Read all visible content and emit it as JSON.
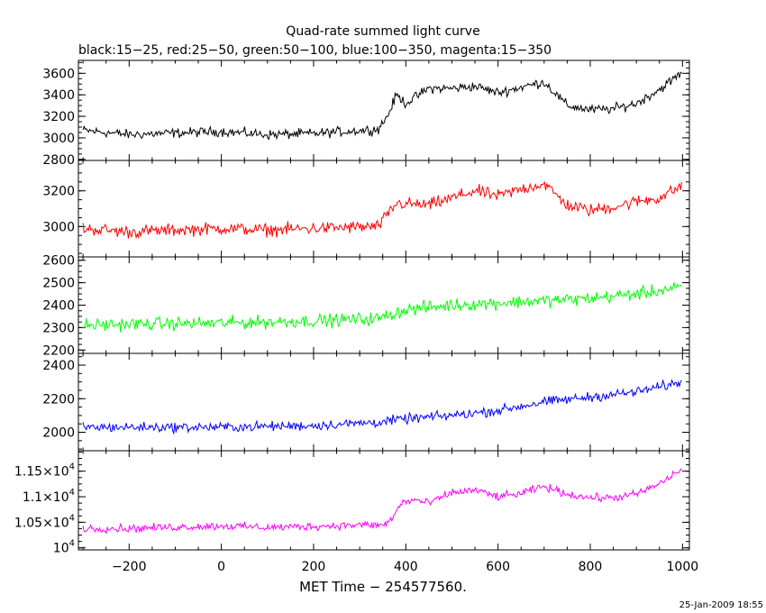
{
  "title": "Quad-rate summed light curve",
  "subtitle": "black:15−25, red:25−50, green:50−100, blue:100−350, magenta:15−350",
  "xlabel": "MET Time − 254577560.",
  "timestamp": "25-Jan-2009 18:55",
  "chart_data": [
    {
      "type": "line",
      "color": "#000000",
      "xlim": [
        -310,
        1015
      ],
      "ylim": [
        2790,
        3720
      ],
      "yticks": [
        2800,
        3000,
        3200,
        3400,
        3600
      ],
      "ytick_labels": [
        "2800",
        "3000",
        "3200",
        "3400",
        "3600"
      ],
      "series": [
        {
          "knots": [
            [
              -300,
              3070
            ],
            [
              -200,
              3030
            ],
            [
              0,
              3060
            ],
            [
              100,
              3030
            ],
            [
              200,
              3040
            ],
            [
              340,
              3080
            ],
            [
              360,
              3200
            ],
            [
              380,
              3400
            ],
            [
              400,
              3320
            ],
            [
              450,
              3460
            ],
            [
              500,
              3460
            ],
            [
              550,
              3480
            ],
            [
              600,
              3420
            ],
            [
              650,
              3470
            ],
            [
              700,
              3520
            ],
            [
              750,
              3300
            ],
            [
              800,
              3260
            ],
            [
              850,
              3270
            ],
            [
              900,
              3320
            ],
            [
              950,
              3450
            ],
            [
              1000,
              3610
            ]
          ],
          "noise": 70
        }
      ]
    },
    {
      "type": "line",
      "color": "#ff0000",
      "xlim": [
        -310,
        1015
      ],
      "ylim": [
        2830,
        3370
      ],
      "yticks": [
        3000,
        3200
      ],
      "ytick_labels": [
        "3000",
        "3200"
      ],
      "series": [
        {
          "knots": [
            [
              -300,
              2990
            ],
            [
              -200,
              2970
            ],
            [
              0,
              2990
            ],
            [
              100,
              2980
            ],
            [
              200,
              2990
            ],
            [
              340,
              3000
            ],
            [
              380,
              3130
            ],
            [
              450,
              3120
            ],
            [
              500,
              3160
            ],
            [
              550,
              3200
            ],
            [
              600,
              3170
            ],
            [
              650,
              3210
            ],
            [
              700,
              3240
            ],
            [
              750,
              3120
            ],
            [
              800,
              3090
            ],
            [
              850,
              3110
            ],
            [
              900,
              3140
            ],
            [
              950,
              3160
            ],
            [
              1000,
              3230
            ]
          ],
          "noise": 55
        }
      ]
    },
    {
      "type": "line",
      "color": "#00ff00",
      "xlim": [
        -310,
        1015
      ],
      "ylim": [
        2185,
        2615
      ],
      "yticks": [
        2200,
        2300,
        2400,
        2500,
        2600
      ],
      "ytick_labels": [
        "2200",
        "2300",
        "2400",
        "2500",
        "2600"
      ],
      "series": [
        {
          "knots": [
            [
              -300,
              2310
            ],
            [
              -200,
              2315
            ],
            [
              0,
              2320
            ],
            [
              200,
              2330
            ],
            [
              340,
              2340
            ],
            [
              400,
              2380
            ],
            [
              500,
              2400
            ],
            [
              600,
              2410
            ],
            [
              700,
              2420
            ],
            [
              800,
              2430
            ],
            [
              900,
              2450
            ],
            [
              1000,
              2480
            ]
          ],
          "noise": 45
        }
      ]
    },
    {
      "type": "line",
      "color": "#0000ff",
      "xlim": [
        -310,
        1015
      ],
      "ylim": [
        1890,
        2470
      ],
      "yticks": [
        2000,
        2200,
        2400
      ],
      "ytick_labels": [
        "2000",
        "2200",
        "2400"
      ],
      "series": [
        {
          "knots": [
            [
              -300,
              2030
            ],
            [
              -200,
              2030
            ],
            [
              0,
              2030
            ],
            [
              200,
              2040
            ],
            [
              340,
              2060
            ],
            [
              400,
              2080
            ],
            [
              500,
              2100
            ],
            [
              600,
              2130
            ],
            [
              700,
              2180
            ],
            [
              800,
              2210
            ],
            [
              900,
              2240
            ],
            [
              1000,
              2300
            ]
          ],
          "noise": 45
        }
      ]
    },
    {
      "type": "line",
      "color": "#ff00ff",
      "xlim": [
        -310,
        1015
      ],
      "ylim": [
        9960,
        11900
      ],
      "yticks": [
        10000,
        10500,
        11000,
        11500
      ],
      "ytick_labels": [
        {
          "mantissa": "10",
          "exp": "4"
        },
        {
          "mantissa": "1.05×10",
          "exp": "4"
        },
        {
          "mantissa": "1.1×10",
          "exp": "4"
        },
        {
          "mantissa": "1.15×10",
          "exp": "4"
        }
      ],
      "series": [
        {
          "knots": [
            [
              -300,
              10380
            ],
            [
              -200,
              10380
            ],
            [
              0,
              10430
            ],
            [
              100,
              10400
            ],
            [
              200,
              10420
            ],
            [
              300,
              10450
            ],
            [
              350,
              10440
            ],
            [
              370,
              10560
            ],
            [
              390,
              10880
            ],
            [
              420,
              10940
            ],
            [
              450,
              10870
            ],
            [
              500,
              11080
            ],
            [
              550,
              11130
            ],
            [
              600,
              11000
            ],
            [
              650,
              11060
            ],
            [
              700,
              11200
            ],
            [
              750,
              11050
            ],
            [
              800,
              10980
            ],
            [
              850,
              10980
            ],
            [
              900,
              11050
            ],
            [
              950,
              11250
            ],
            [
              1000,
              11550
            ]
          ],
          "noise": 120
        }
      ]
    }
  ],
  "xaxis": {
    "ticks": [
      -200,
      0,
      200,
      400,
      600,
      800,
      1000
    ],
    "labels": [
      "−200",
      "0",
      "200",
      "400",
      "600",
      "800",
      "1000"
    ]
  }
}
